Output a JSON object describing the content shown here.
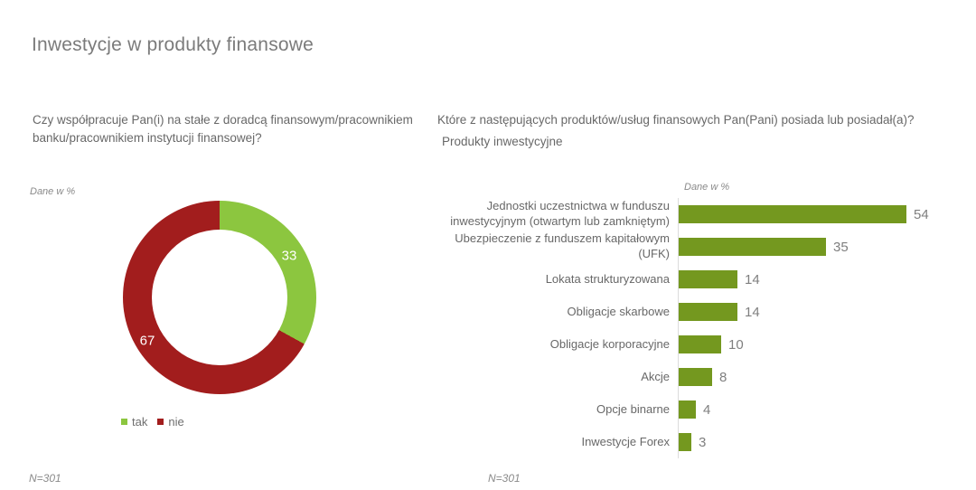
{
  "page": {
    "title": "Inwestycje w produkty finansowe"
  },
  "left_panel": {
    "question": "Czy współpracuje Pan(i) na stałe z doradcą finansowym/pracownikiem banku/pracownikiem instytucji finansowej?",
    "data_note": "Dane w %",
    "sample_note": "N=301"
  },
  "right_panel": {
    "question": "Które z następujących produktów/usług finansowych Pan(Pani) posiada lub posiadał(a)?",
    "subtitle": "Produkty inwestycyjne",
    "data_note": "Dane w %",
    "sample_note": "N=301"
  },
  "colors": {
    "donut_green": "#8cc63f",
    "donut_red": "#a21d1d",
    "bar_green": "#74981f",
    "title_gray": "#7b7b7b",
    "text_gray": "#686868",
    "axis_gray": "#dcdcdc"
  },
  "chart_data": [
    {
      "type": "pie",
      "variant": "donut",
      "title": "Czy współpracuje Pan(i) na stałe z doradcą finansowym/pracownikiem banku/pracownikiem instytucji finansowej?",
      "labels": [
        "tak",
        "nie"
      ],
      "values": [
        33,
        67
      ],
      "colors": [
        "#8cc63f",
        "#a21d1d"
      ],
      "unit": "%",
      "start_angle": "top",
      "direction": "clockwise",
      "legend_position": "bottom",
      "sample": "N=301"
    },
    {
      "type": "bar",
      "orientation": "horizontal",
      "title": "Produkty inwestycyjne",
      "categories": [
        "Jednostki uczestnictwa w funduszu inwestycyjnym (otwartym lub zamkniętym)",
        "Ubezpieczenie z funduszem kapitałowym (UFK)",
        "Lokata strukturyzowana",
        "Obligacje skarbowe",
        "Obligacje korporacyjne",
        "Akcje",
        "Opcje binarne",
        "Inwestycje Forex"
      ],
      "values": [
        54,
        35,
        14,
        14,
        10,
        8,
        4,
        3
      ],
      "bar_color": "#74981f",
      "unit": "%",
      "data_labels": true,
      "xlim": [
        0,
        60
      ],
      "grid": false,
      "sample": "N=301"
    }
  ]
}
